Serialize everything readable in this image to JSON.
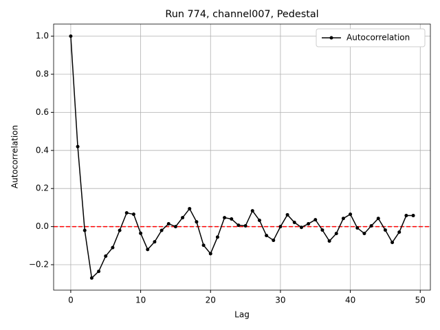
{
  "chart_data": {
    "type": "line",
    "title": "Run 774, channel007, Pedestal",
    "x_label": "Lag",
    "y_label": "Autocorrelation",
    "x": [
      0,
      1,
      2,
      3,
      4,
      5,
      6,
      7,
      8,
      9,
      10,
      11,
      12,
      13,
      14,
      15,
      16,
      17,
      18,
      19,
      20,
      21,
      22,
      23,
      24,
      25,
      26,
      27,
      28,
      29,
      30,
      31,
      32,
      33,
      34,
      35,
      36,
      37,
      38,
      39,
      40,
      41,
      42,
      43,
      44,
      45,
      46,
      47,
      48,
      49
    ],
    "series": [
      {
        "name": "Autocorrelation",
        "color": "#000000",
        "values": [
          1.0,
          0.42,
          -0.02,
          -0.27,
          -0.235,
          -0.155,
          -0.11,
          -0.02,
          0.072,
          0.065,
          -0.035,
          -0.12,
          -0.08,
          -0.02,
          0.015,
          0.0,
          0.047,
          0.094,
          0.025,
          -0.098,
          -0.142,
          -0.055,
          0.047,
          0.04,
          0.007,
          0.004,
          0.083,
          0.033,
          -0.047,
          -0.072,
          0.0,
          0.062,
          0.022,
          -0.004,
          0.015,
          0.036,
          -0.018,
          -0.076,
          -0.036,
          0.043,
          0.065,
          -0.007,
          -0.036,
          0.004,
          0.043,
          -0.018,
          -0.083,
          -0.029,
          0.058,
          0.058
        ]
      }
    ],
    "xlim": [
      -2.45,
      51.45
    ],
    "ylim": [
      -0.3335,
      1.0635
    ],
    "xticks": [
      0,
      10,
      20,
      30,
      40,
      50
    ],
    "yticks": [
      {
        "value": -0.2,
        "label": "−0.2"
      },
      {
        "value": 0,
        "label": "0.0"
      },
      0.2,
      0.4,
      0.6,
      0.8,
      {
        "value": 1,
        "label": "1.0"
      }
    ],
    "reference_line": {
      "value": 0,
      "color": "#ff0000"
    },
    "grid": true,
    "legend": "upper right"
  }
}
